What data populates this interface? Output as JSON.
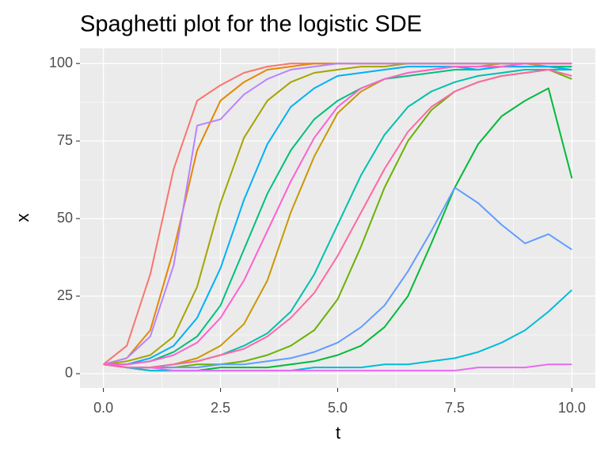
{
  "chart_data": {
    "type": "line",
    "title": "Spaghetti plot for the logistic SDE",
    "x_label": "t",
    "y_label": "x",
    "x": [
      0,
      0.5,
      1,
      1.5,
      2,
      2.5,
      3,
      3.5,
      4,
      4.5,
      5,
      5.5,
      6,
      6.5,
      7,
      7.5,
      8,
      8.5,
      9,
      9.5,
      10
    ],
    "series": [
      {
        "color": "#F8766D",
        "values": [
          3,
          9,
          32,
          66,
          88,
          93,
          97,
          99,
          100,
          100,
          100,
          100,
          100,
          100,
          100,
          100,
          100,
          100,
          100,
          100,
          100
        ]
      },
      {
        "color": "#E58700",
        "values": [
          3,
          5,
          14,
          40,
          72,
          88,
          94,
          98,
          99,
          100,
          100,
          100,
          100,
          100,
          100,
          100,
          100,
          100,
          100,
          100,
          100
        ]
      },
      {
        "color": "#C99800",
        "values": [
          3,
          2,
          2,
          3,
          5,
          9,
          16,
          30,
          52,
          70,
          84,
          91,
          95,
          97,
          98,
          99,
          99,
          100,
          100,
          99,
          99
        ]
      },
      {
        "color": "#A3A500",
        "values": [
          3,
          4,
          6,
          12,
          28,
          55,
          76,
          88,
          94,
          97,
          98,
          99,
          99,
          100,
          100,
          100,
          100,
          100,
          100,
          100,
          100
        ]
      },
      {
        "color": "#6BB100",
        "values": [
          3,
          2,
          2,
          2,
          3,
          3,
          4,
          6,
          9,
          14,
          24,
          41,
          60,
          75,
          85,
          91,
          94,
          96,
          97,
          98,
          95
        ]
      },
      {
        "color": "#00BA38",
        "values": [
          3,
          2,
          1,
          1,
          1,
          2,
          2,
          2,
          3,
          4,
          6,
          9,
          15,
          25,
          42,
          60,
          74,
          83,
          88,
          92,
          63
        ]
      },
      {
        "color": "#00BF7D",
        "values": [
          3,
          3,
          4,
          7,
          12,
          22,
          40,
          58,
          72,
          82,
          88,
          92,
          95,
          96,
          97,
          98,
          98,
          99,
          99,
          99,
          99
        ]
      },
      {
        "color": "#00C0AF",
        "values": [
          3,
          2,
          2,
          3,
          4,
          6,
          9,
          13,
          20,
          32,
          48,
          64,
          77,
          86,
          91,
          94,
          96,
          97,
          98,
          98,
          98
        ]
      },
      {
        "color": "#00BCD8",
        "values": [
          3,
          2,
          1,
          1,
          1,
          1,
          1,
          1,
          1,
          2,
          2,
          2,
          3,
          3,
          4,
          5,
          7,
          10,
          14,
          20,
          27
        ]
      },
      {
        "color": "#00B0F6",
        "values": [
          3,
          3,
          5,
          9,
          18,
          34,
          56,
          74,
          86,
          92,
          96,
          97,
          98,
          99,
          99,
          99,
          98,
          99,
          99,
          99,
          98
        ]
      },
      {
        "color": "#619CFF",
        "values": [
          3,
          2,
          2,
          2,
          2,
          3,
          3,
          4,
          5,
          7,
          10,
          15,
          22,
          33,
          46,
          60,
          55,
          48,
          42,
          45,
          40
        ]
      },
      {
        "color": "#B983FF",
        "values": [
          3,
          5,
          12,
          35,
          80,
          82,
          90,
          95,
          98,
          99,
          100,
          100,
          100,
          100,
          100,
          100,
          100,
          100,
          100,
          100,
          100
        ]
      },
      {
        "color": "#E76BF3",
        "values": [
          3,
          2,
          2,
          1,
          1,
          1,
          1,
          1,
          1,
          1,
          1,
          1,
          1,
          1,
          1,
          1,
          2,
          2,
          2,
          3,
          3
        ]
      },
      {
        "color": "#FD61D1",
        "values": [
          3,
          3,
          4,
          6,
          10,
          18,
          30,
          46,
          62,
          76,
          86,
          92,
          95,
          97,
          98,
          99,
          99,
          99,
          100,
          100,
          100
        ]
      },
      {
        "color": "#FF67A4",
        "values": [
          3,
          2,
          2,
          3,
          4,
          6,
          8,
          12,
          18,
          26,
          38,
          52,
          66,
          78,
          86,
          91,
          94,
          96,
          97,
          98,
          96
        ]
      }
    ],
    "xlim": [
      -0.5,
      10.5
    ],
    "ylim": [
      -4.6,
      104.9
    ],
    "xticks": [
      {
        "value": 0,
        "label": "0.0"
      },
      2.5,
      {
        "value": 5,
        "label": "5.0"
      },
      7.5,
      {
        "value": 10,
        "label": "10.0"
      }
    ],
    "yticks": [
      0,
      25,
      50,
      75,
      100
    ],
    "minor_xticks": [
      1.25,
      3.75,
      6.25,
      8.75
    ],
    "minor_yticks": [
      12.5,
      37.5,
      62.5,
      87.5
    ],
    "grid": true
  }
}
